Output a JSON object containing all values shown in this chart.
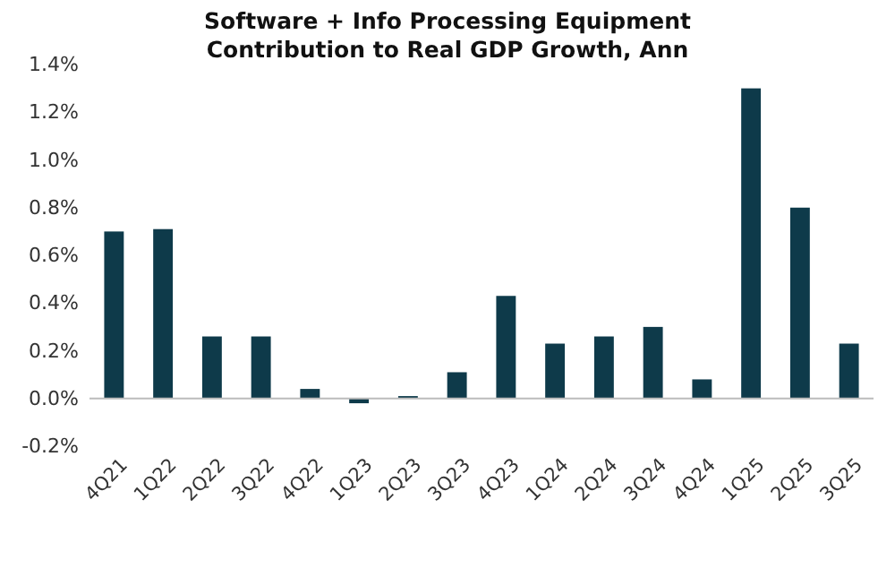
{
  "chart_data": {
    "type": "bar",
    "title": "Software + Info Processing Equipment\nContribution to Real GDP Growth, Ann",
    "categories": [
      "4Q21",
      "1Q22",
      "2Q22",
      "3Q22",
      "4Q22",
      "1Q23",
      "2Q23",
      "3Q23",
      "4Q23",
      "1Q24",
      "2Q24",
      "3Q24",
      "4Q24",
      "1Q25",
      "2Q25",
      "3Q25"
    ],
    "values": [
      0.7,
      0.71,
      0.26,
      0.26,
      0.04,
      -0.02,
      0.01,
      0.11,
      0.43,
      0.23,
      0.26,
      0.3,
      0.08,
      1.3,
      0.8,
      0.23
    ],
    "color": "#0e3a4a",
    "ylim": [
      -0.2,
      1.4
    ],
    "yticks": [
      {
        "value": -0.2,
        "label": "-0.2%"
      },
      {
        "value": 0,
        "label": "0.0%"
      },
      {
        "value": 0.2,
        "label": "0.2%"
      },
      {
        "value": 0.4,
        "label": "0.4%"
      },
      {
        "value": 0.6,
        "label": "0.6%"
      },
      {
        "value": 0.8,
        "label": "0.8%"
      },
      {
        "value": 1.0,
        "label": "1.0%"
      },
      {
        "value": 1.2,
        "label": "1.2%"
      },
      {
        "value": 1.4,
        "label": "1.4%"
      }
    ]
  }
}
